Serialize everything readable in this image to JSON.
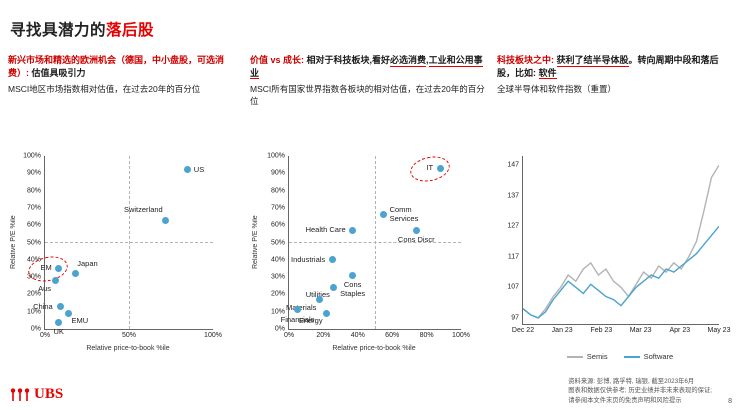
{
  "title": {
    "prefix": "寻找具潜力的",
    "emphasis": "落后股"
  },
  "columns": [
    {
      "heading_red": "新兴市场和精选的欧洲机会（德国，中小盘股，可选消费）: ",
      "heading_dark": "估值具吸引力",
      "subtitle": "MSCI地区市场指数相对估值，在过去20年的百分位"
    },
    {
      "h1": "价值 vs 成长: ",
      "h2": "相对于科技板块,看好",
      "h3": "必选消费",
      "h4": ",",
      "h5": "工业和公用事业",
      "subtitle": "MSCI所有国家世界指数各板块的相对估值，在过去20年的百分位"
    },
    {
      "h1": "科技板块之中: ",
      "h2": "获利了结半导体股",
      "h3": "。转向周期中段和落后股，比如: ",
      "h4": "软件",
      "subtitle": "全球半导体和软件指数（重置）"
    }
  ],
  "chart_data": [
    {
      "type": "scatter",
      "title": "MSCI地区市场指数相对估值，在过去20年的百分位",
      "xlabel": "Relative price-to-book  %ile",
      "ylabel": "Relative P/E %ile",
      "xlim": [
        0,
        100
      ],
      "ylim": [
        0,
        100
      ],
      "xticks": [
        "0%",
        "50%",
        "100%"
      ],
      "yticks": [
        "0%",
        "10%",
        "20%",
        "30%",
        "40%",
        "50%",
        "60%",
        "70%",
        "80%",
        "90%",
        "100%"
      ],
      "crosshair": [
        50,
        50
      ],
      "dot_color": "#4ba3cf",
      "points": [
        {
          "label": "US",
          "x": 85,
          "y": 92,
          "lpos": "r"
        },
        {
          "label": "Switzerland",
          "x": 72,
          "y": 63,
          "lpos": "al"
        },
        {
          "label": "Japan",
          "x": 18,
          "y": 32,
          "lpos": "ar"
        },
        {
          "label": "EM",
          "x": 8,
          "y": 35,
          "lpos": "l",
          "highlight": true
        },
        {
          "label": "Aus",
          "x": 6,
          "y": 28,
          "lpos": "bl"
        },
        {
          "label": "China",
          "x": 9,
          "y": 13,
          "lpos": "l"
        },
        {
          "label": "EMU",
          "x": 14,
          "y": 9,
          "lpos": "br"
        },
        {
          "label": "UK",
          "x": 8,
          "y": 4,
          "lpos": "b"
        }
      ]
    },
    {
      "type": "scatter",
      "title": "MSCI所有国家世界指数各板块的相对估值，在过去20年的百分位",
      "xlabel": "Relative price-to-book  %ile",
      "ylabel": "Relative P/E %ile",
      "xlim": [
        0,
        100
      ],
      "ylim": [
        0,
        100
      ],
      "xticks": [
        "0%",
        "20%",
        "40%",
        "60%",
        "80%",
        "100%"
      ],
      "yticks": [
        "0%",
        "10%",
        "20%",
        "30%",
        "40%",
        "50%",
        "60%",
        "70%",
        "80%",
        "90%",
        "100%"
      ],
      "crosshair": [
        50,
        50
      ],
      "dot_color": "#4ba3cf",
      "points": [
        {
          "label": "IT",
          "x": 88,
          "y": 93,
          "lpos": "l",
          "highlight": true
        },
        {
          "label": "Comm Services",
          "x": 55,
          "y": 66,
          "lpos": "r",
          "wrap": true
        },
        {
          "label": "Health Care",
          "x": 37,
          "y": 57,
          "lpos": "l",
          "wrap": true
        },
        {
          "label": "Cons Discr",
          "x": 74,
          "y": 57,
          "lpos": "b",
          "wrap": true
        },
        {
          "label": "Industrials",
          "x": 25,
          "y": 40,
          "lpos": "l"
        },
        {
          "label": "Cons Staples",
          "x": 37,
          "y": 31,
          "lpos": "b",
          "wrap": true
        },
        {
          "label": "Utilities",
          "x": 26,
          "y": 24,
          "lpos": "bl"
        },
        {
          "label": "Materials",
          "x": 18,
          "y": 17,
          "lpos": "bl"
        },
        {
          "label": "Financials",
          "x": 5,
          "y": 11,
          "lpos": "b"
        },
        {
          "label": "Energy",
          "x": 22,
          "y": 9,
          "lpos": "bl"
        }
      ]
    },
    {
      "type": "line",
      "title": "全球半导体和软件指数（重置）",
      "ylim": [
        95,
        150
      ],
      "yticks": [
        97,
        107,
        117,
        127,
        137,
        147
      ],
      "xticklabels": [
        "Dec 22",
        "Jan 23",
        "Feb 23",
        "Mar 23",
        "Apr 23",
        "May 23"
      ],
      "legend_position": "bottom",
      "series": [
        {
          "name": "Semis",
          "color": "#b3b3b3",
          "values": [
            100,
            98,
            97,
            100,
            104,
            107,
            111,
            109,
            113,
            115,
            111,
            113,
            109,
            107,
            104,
            108,
            112,
            110,
            114,
            112,
            115,
            113,
            117,
            122,
            132,
            143,
            147
          ]
        },
        {
          "name": "Software",
          "color": "#4ba3cf",
          "values": [
            100,
            98,
            97,
            99,
            103,
            106,
            109,
            107,
            105,
            108,
            106,
            104,
            103,
            101,
            104,
            107,
            109,
            111,
            110,
            113,
            112,
            114,
            116,
            118,
            121,
            124,
            127
          ]
        }
      ]
    }
  ],
  "footer": {
    "source_line1": "资料来源: 彭博, 路孚特, 瑞银, 截至2023年6月",
    "source_line2": "图表和数据仅供参考; 历史业绩并非未来表现的保证;",
    "source_line3": "请参阅本文件末页的免责声明和风险提示",
    "page_number": "8",
    "logo_text": "UBS"
  }
}
